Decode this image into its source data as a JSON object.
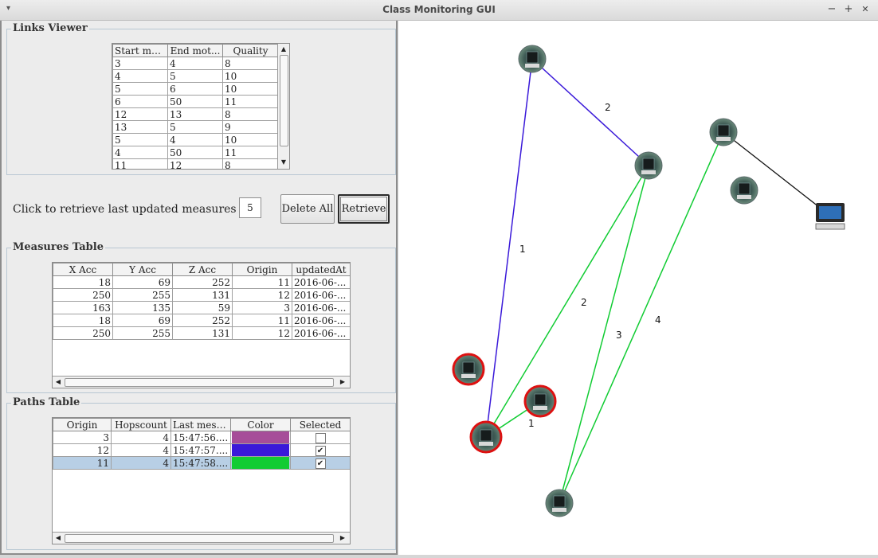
{
  "window": {
    "title": "Class Monitoring GUI",
    "menu_glyph": "▾",
    "minimize_glyph": "−",
    "maximize_glyph": "+",
    "close_glyph": "✕"
  },
  "links_viewer": {
    "title": "Links Viewer",
    "columns": [
      "Start mo...",
      "End mot...",
      "Quality"
    ],
    "rows": [
      [
        "3",
        "4",
        "8"
      ],
      [
        "4",
        "5",
        "10"
      ],
      [
        "5",
        "6",
        "10"
      ],
      [
        "6",
        "50",
        "11"
      ],
      [
        "12",
        "13",
        "8"
      ],
      [
        "13",
        "5",
        "9"
      ],
      [
        "5",
        "4",
        "10"
      ],
      [
        "4",
        "50",
        "11"
      ],
      [
        "11",
        "12",
        "8"
      ]
    ]
  },
  "controls": {
    "retrieve_prompt": "Click to retrieve last updated measures",
    "count_value": "5",
    "delete_all_label": "Delete All",
    "retrieve_label": "Retrieve"
  },
  "measures_table": {
    "title": "Measures Table",
    "columns": [
      "X Acc",
      "Y Acc",
      "Z Acc",
      "Origin",
      "updatedAt"
    ],
    "rows": [
      [
        "18",
        "69",
        "252",
        "11",
        "2016-06-..."
      ],
      [
        "250",
        "255",
        "131",
        "12",
        "2016-06-..."
      ],
      [
        "163",
        "135",
        "59",
        "3",
        "2016-06-..."
      ],
      [
        "18",
        "69",
        "252",
        "11",
        "2016-06-..."
      ],
      [
        "250",
        "255",
        "131",
        "12",
        "2016-06-..."
      ]
    ]
  },
  "paths_table": {
    "title": "Paths Table",
    "columns": [
      "Origin",
      "Hopscount",
      "Last mess...",
      "Color",
      "Selected"
    ],
    "rows": [
      {
        "origin": "3",
        "hops": "4",
        "last": "15:47:56....",
        "color": "#a64d99",
        "selected": false
      },
      {
        "origin": "12",
        "hops": "4",
        "last": "15:47:57....",
        "color": "#3a19d9",
        "selected": true
      },
      {
        "origin": "11",
        "hops": "4",
        "last": "15:47:58....",
        "color": "#11cc33",
        "selected": true,
        "highlighted": true
      }
    ]
  },
  "graph": {
    "edge_colors": {
      "blue": "#3a19d9",
      "green": "#11cc33",
      "black": "#111111"
    },
    "motes": [
      {
        "name": "mote-a",
        "alert": false
      },
      {
        "name": "mote-b",
        "alert": false
      },
      {
        "name": "mote-c",
        "alert": false
      },
      {
        "name": "mote-d",
        "alert": false
      },
      {
        "name": "mote-e",
        "alert": true
      },
      {
        "name": "mote-f",
        "alert": true
      },
      {
        "name": "mote-g",
        "alert": true
      },
      {
        "name": "mote-h",
        "alert": false
      }
    ],
    "base_station": "computer-icon",
    "edges": [
      {
        "from": "mote-a",
        "to": "mote-g",
        "color": "blue",
        "label": "1"
      },
      {
        "from": "mote-a",
        "to": "mote-b",
        "color": "blue",
        "label": "2"
      },
      {
        "from": "mote-b",
        "to": "mote-g",
        "color": "green",
        "label": "2"
      },
      {
        "from": "mote-b",
        "to": "mote-h",
        "color": "green",
        "label": "3"
      },
      {
        "from": "mote-c",
        "to": "mote-h",
        "color": "green",
        "label": "4"
      },
      {
        "from": "mote-f",
        "to": "mote-g",
        "color": "green",
        "label": "1"
      },
      {
        "from": "mote-c",
        "to": "computer",
        "color": "black",
        "label": ""
      }
    ]
  }
}
